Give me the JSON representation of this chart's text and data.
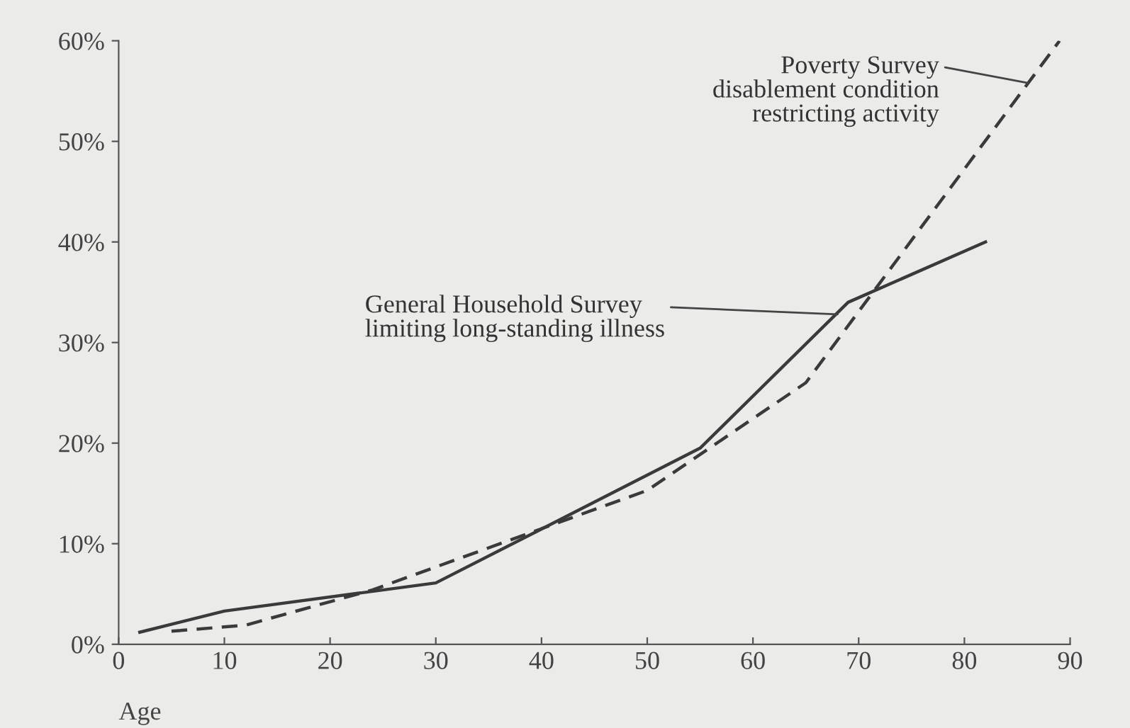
{
  "chart_data": {
    "type": "line",
    "xlabel": "Age",
    "xlim": [
      0,
      90
    ],
    "xticks": [
      0,
      10,
      20,
      30,
      40,
      50,
      60,
      70,
      80,
      90
    ],
    "ylim": [
      0,
      60
    ],
    "yticks": [
      {
        "value": 0,
        "label": "0%"
      },
      {
        "value": 10,
        "label": "10%"
      },
      {
        "value": 20,
        "label": "20%"
      },
      {
        "value": 30,
        "label": "30%"
      },
      {
        "value": 40,
        "label": "40%"
      },
      {
        "value": 50,
        "label": "50%"
      },
      {
        "value": 60,
        "label": "60%"
      }
    ],
    "grid": false,
    "marker": "none",
    "series": [
      {
        "color": "#3a3a3a",
        "line_style": "solid",
        "x": [
          2,
          10,
          30,
          55,
          69,
          82
        ],
        "values": [
          1.2,
          3.3,
          6.1,
          19.5,
          34,
          40
        ]
      },
      {
        "color": "#3a3a3a",
        "line_style": "dashed",
        "x": [
          5,
          12,
          24,
          50,
          65,
          89
        ],
        "values": [
          1.3,
          1.9,
          5.4,
          15.3,
          26,
          60
        ]
      }
    ],
    "annotations": [
      {
        "text": "Poverty Survey\ndisablement condition\nrestricting activity",
        "x": 86,
        "y": 55.8
      },
      {
        "text": "General Household Survey\nlimiting long-standing illness",
        "x": 68,
        "y": 32.8
      }
    ]
  }
}
